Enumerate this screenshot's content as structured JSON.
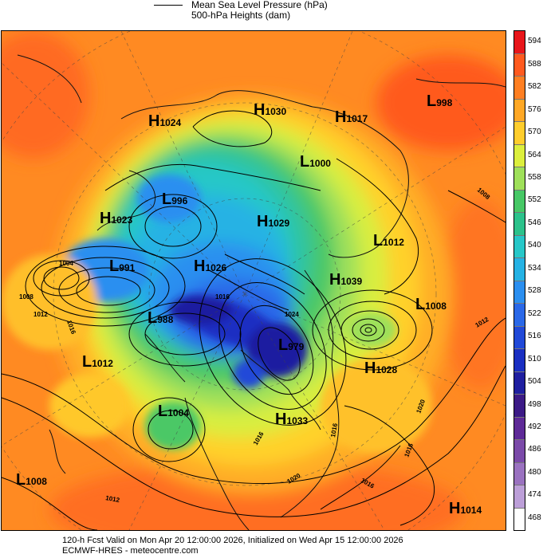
{
  "legend": {
    "line1": "Mean Sea Level Pressure (hPa)",
    "line2": "500-hPa Heights (dam)"
  },
  "colorbar": [
    {
      "label": "594",
      "color": "#e8161b"
    },
    {
      "label": "588",
      "color": "#ff5a1f"
    },
    {
      "label": "582",
      "color": "#ff7f22"
    },
    {
      "label": "576",
      "color": "#ffa826"
    },
    {
      "label": "570",
      "color": "#ffcd2c"
    },
    {
      "label": "564",
      "color": "#dcef3d"
    },
    {
      "label": "558",
      "color": "#9fe05a"
    },
    {
      "label": "552",
      "color": "#47c866"
    },
    {
      "label": "546",
      "color": "#2cc28b"
    },
    {
      "label": "540",
      "color": "#27c7c8"
    },
    {
      "label": "534",
      "color": "#25b2e4"
    },
    {
      "label": "528",
      "color": "#2b8ff0"
    },
    {
      "label": "522",
      "color": "#2a68e8"
    },
    {
      "label": "516",
      "color": "#2149d8"
    },
    {
      "label": "510",
      "color": "#1a2fc2"
    },
    {
      "label": "504",
      "color": "#1f1fa0"
    },
    {
      "label": "498",
      "color": "#3c1a86"
    },
    {
      "label": "492",
      "color": "#5e2a97"
    },
    {
      "label": "486",
      "color": "#7b4aa9"
    },
    {
      "label": "480",
      "color": "#9a72c0"
    },
    {
      "label": "474",
      "color": "#bc9fd8"
    },
    {
      "label": "468",
      "color": "#ffffff"
    }
  ],
  "pressure_systems": [
    {
      "type": "H",
      "value": "1024"
    },
    {
      "type": "H",
      "value": "1030"
    },
    {
      "type": "H",
      "value": "1017"
    },
    {
      "type": "L",
      "value": "998"
    },
    {
      "type": "L",
      "value": "1000"
    },
    {
      "type": "L",
      "value": "996"
    },
    {
      "type": "H",
      "value": "1023"
    },
    {
      "type": "H",
      "value": "1029"
    },
    {
      "type": "L",
      "value": "1012"
    },
    {
      "type": "L",
      "value": "991"
    },
    {
      "type": "H",
      "value": "1026"
    },
    {
      "type": "H",
      "value": "1039"
    },
    {
      "type": "L",
      "value": "1008"
    },
    {
      "type": "L",
      "value": "988"
    },
    {
      "type": "L",
      "value": "979"
    },
    {
      "type": "L",
      "value": "1012"
    },
    {
      "type": "H",
      "value": "1028"
    },
    {
      "type": "L",
      "value": "1004"
    },
    {
      "type": "H",
      "value": "1033"
    },
    {
      "type": "L",
      "value": "1008"
    },
    {
      "type": "H",
      "value": "1014"
    }
  ],
  "isobar_labels": [
    "1004",
    "1008",
    "1012",
    "1016",
    "1016",
    "1024",
    "1020",
    "1016",
    "1012",
    "1008",
    "1016",
    "1020",
    "1016",
    "1012",
    "1016"
  ],
  "footer": {
    "line1": "120-h Fcst Valid on Mon Apr 20 12:00:00 2026, Initialized on Wed Apr 15 12:00:00 2026",
    "line2": "ECMWF-HRES  - meteocentre.com"
  }
}
